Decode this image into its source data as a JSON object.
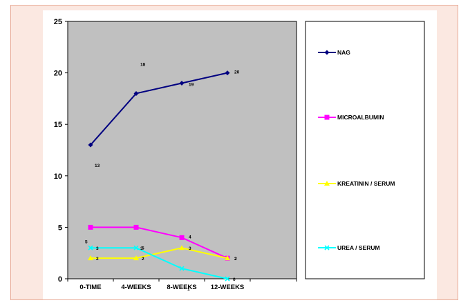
{
  "colors": {
    "frame_bg": "#fbe8e1",
    "frame_border": "#e7a995",
    "plot_bg": "#c0c0c0"
  },
  "chart_data": {
    "type": "line",
    "title": "",
    "xlabel": "",
    "ylabel": "",
    "categories": [
      "0-TIME",
      "4-WEEKS",
      "8-WEEKS",
      "12-WEEKS"
    ],
    "ylim": [
      0,
      25
    ],
    "yticks": [
      "0",
      "5",
      "10",
      "15",
      "20",
      "25"
    ],
    "grid": false,
    "legend_position": "right",
    "series": [
      {
        "name": "NAG",
        "color": "#000080",
        "marker": "diamond",
        "values": [
          13,
          18,
          19,
          20
        ],
        "labels": [
          "13",
          "18",
          "19",
          "20"
        ]
      },
      {
        "name": "MICROALBUMIN",
        "color": "#ff00ff",
        "marker": "square",
        "values": [
          5,
          5,
          4,
          2
        ],
        "labels": [
          "5",
          "5",
          "4",
          "2"
        ]
      },
      {
        "name": "KREATININ / SERUM",
        "color": "#ffff00",
        "marker": "triangle",
        "values": [
          2,
          2,
          3,
          2
        ],
        "labels": [
          "2",
          "2",
          "3",
          "2"
        ]
      },
      {
        "name": "UREA / SERUM",
        "color": "#00ffff",
        "marker": "x",
        "values": [
          3,
          3,
          1,
          0
        ],
        "labels": [
          "3",
          "3",
          "1",
          "0"
        ]
      }
    ]
  }
}
